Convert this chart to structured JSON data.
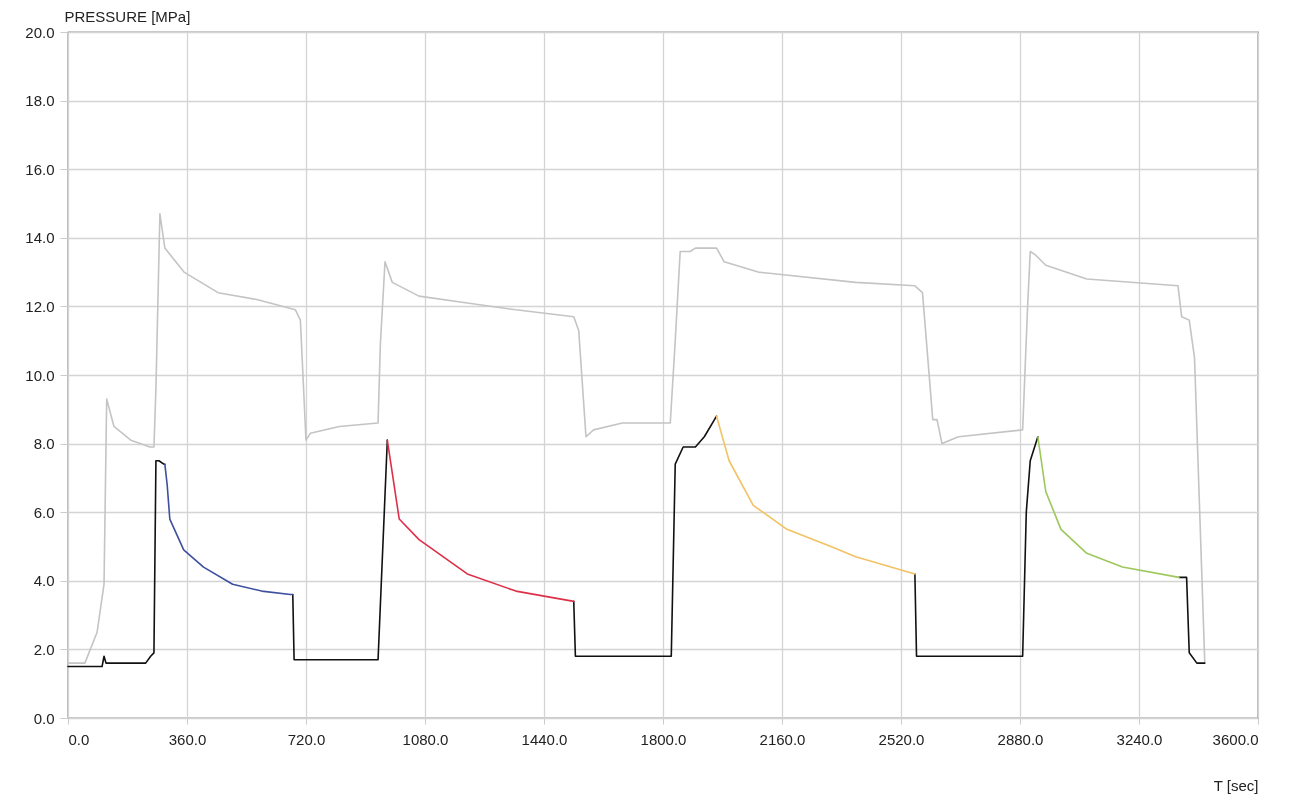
{
  "chart_data": {
    "type": "line",
    "xlabel": "T [sec]",
    "ylabel": "PRESSURE [MPa]",
    "xlim": [
      0,
      3600
    ],
    "ylim": [
      0,
      20
    ],
    "xticks": [
      {
        "value": 0,
        "label": "0.0"
      },
      {
        "value": 360,
        "label": "360.0"
      },
      {
        "value": 720,
        "label": "720.0"
      },
      {
        "value": 1080,
        "label": "1080.0"
      },
      {
        "value": 1440,
        "label": "1440.0"
      },
      {
        "value": 1800,
        "label": "1800.0"
      },
      {
        "value": 2160,
        "label": "2160.0"
      },
      {
        "value": 2520,
        "label": "2520.0"
      },
      {
        "value": 2880,
        "label": "2880.0"
      },
      {
        "value": 3240,
        "label": "3240.0"
      },
      {
        "value": 3600,
        "label": "3600.0"
      }
    ],
    "yticks": [
      {
        "value": 0,
        "label": "0.0"
      },
      {
        "value": 2,
        "label": "2.0"
      },
      {
        "value": 4,
        "label": "4.0"
      },
      {
        "value": 6,
        "label": "6.0"
      },
      {
        "value": 8,
        "label": "8.0"
      },
      {
        "value": 10,
        "label": "10.0"
      },
      {
        "value": 12,
        "label": "12.0"
      },
      {
        "value": 14,
        "label": "14.0"
      },
      {
        "value": 16,
        "label": "16.0"
      },
      {
        "value": 18,
        "label": "18.0"
      },
      {
        "value": 20,
        "label": "20.0"
      }
    ],
    "grid": true,
    "marker": "none",
    "line_style": "solid",
    "legend": false,
    "series": [
      {
        "color": "#c4c4c4",
        "x": [
          0,
          51,
          88,
          109,
          117,
          139,
          190,
          248,
          260,
          266,
          278,
          293,
          351,
          454,
          571,
          688,
          703,
          720,
          733,
          821,
          938,
          945,
          959,
          981,
          1062,
          1208,
          1355,
          1530,
          1545,
          1567,
          1590,
          1677,
          1822,
          1837,
          1852,
          1882,
          1898,
          1962,
          1985,
          2088,
          2383,
          2562,
          2585,
          2601,
          2616,
          2629,
          2644,
          2694,
          2888,
          2903,
          2911,
          2927,
          2958,
          3082,
          3358,
          3369,
          3392,
          3408,
          3439
        ],
        "values": [
          1.6,
          1.6,
          2.5,
          3.9,
          9.3,
          8.5,
          8.1,
          7.9,
          7.9,
          9.6,
          14.7,
          13.7,
          13.0,
          12.4,
          12.2,
          11.9,
          11.6,
          8.1,
          8.3,
          8.5,
          8.6,
          10.9,
          13.3,
          12.7,
          12.3,
          12.1,
          11.9,
          11.7,
          11.3,
          8.2,
          8.4,
          8.6,
          8.6,
          11.0,
          13.6,
          13.6,
          13.7,
          13.7,
          13.3,
          13.0,
          12.7,
          12.6,
          12.4,
          10.5,
          8.7,
          8.7,
          8.0,
          8.2,
          8.4,
          12.0,
          13.6,
          13.5,
          13.2,
          12.8,
          12.6,
          11.7,
          11.6,
          10.5,
          1.6
        ]
      },
      {
        "color": "#111111",
        "x": [
          0,
          103,
          109,
          115,
          235,
          250,
          260,
          266,
          275,
          290,
          293,
          null,
          680,
          684,
          700,
          938,
          966,
          null,
          1530,
          1535,
          1600,
          1825,
          1837,
          1861,
          1898,
          1925,
          1962,
          null,
          2562,
          2567,
          2700,
          2888,
          2899,
          2911,
          2934,
          null,
          3361,
          3384,
          3392,
          3415,
          3439
        ],
        "values": [
          1.5,
          1.5,
          1.8,
          1.6,
          1.6,
          1.8,
          1.9,
          7.5,
          7.5,
          7.4,
          7.4,
          null,
          3.6,
          1.7,
          1.7,
          1.7,
          8.1,
          null,
          3.4,
          1.8,
          1.8,
          1.8,
          7.4,
          7.9,
          7.9,
          8.2,
          8.8,
          null,
          4.2,
          1.8,
          1.8,
          1.8,
          6.0,
          7.5,
          8.2,
          null,
          4.1,
          4.1,
          1.9,
          1.6,
          1.6
        ]
      },
      {
        "color": "#3d4f9e",
        "x": [
          293,
          300,
          308,
          350,
          410,
          498,
          586,
          673,
          680
        ],
        "values": [
          7.4,
          6.8,
          5.8,
          4.9,
          4.4,
          3.9,
          3.7,
          3.6,
          3.6
        ]
      },
      {
        "color": "#dd2f48",
        "x": [
          966,
          1002,
          1062,
          1208,
          1355,
          1530
        ],
        "values": [
          8.1,
          5.8,
          5.2,
          4.2,
          3.7,
          3.4
        ]
      },
      {
        "color": "#f2c264",
        "x": [
          1962,
          2000,
          2073,
          2175,
          2308,
          2383,
          2562
        ],
        "values": [
          8.8,
          7.5,
          6.2,
          5.5,
          5.0,
          4.7,
          4.2
        ]
      },
      {
        "color": "#9dc85c",
        "x": [
          2934,
          2958,
          3004,
          3082,
          3190,
          3361
        ],
        "values": [
          8.2,
          6.6,
          5.5,
          4.8,
          4.4,
          4.1
        ]
      }
    ]
  }
}
